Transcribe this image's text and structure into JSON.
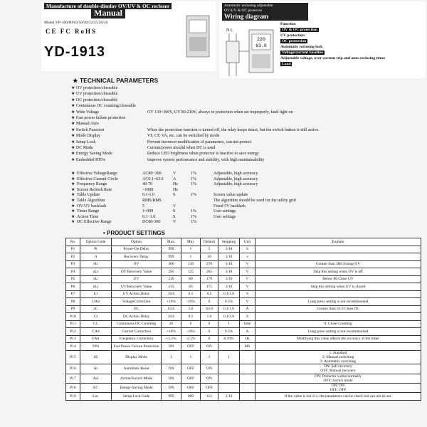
{
  "header": {
    "title": "Manufacture of double-display OV/UV & OC recloser",
    "subtitle": "Manual",
    "model": "Model:VP-100/80/63/50/40/32/25/20/16",
    "certifications": "CE  FC  RoHS",
    "product": "YD-1913"
  },
  "wiring": {
    "title_lines": [
      "Automatic reclosing adjustable",
      "OV/UV & OC protector"
    ],
    "title": "Wiring diagram",
    "terminals": "N   L",
    "display_voltage": "220",
    "display_current": "63.0",
    "legend": [
      "Function",
      "OV & OC protection",
      "UV protection",
      "OC protection",
      "Automatic reclosing lock",
      "Voltage/current baseline",
      "Adjustable voltage, over current trip and auto-reclosing times",
      "Load"
    ]
  },
  "technical": {
    "title": "TECHNICAL PARAMETERS",
    "features": [
      {
        "label": "OV protection/closeable"
      },
      {
        "label": "UV protection/closeable"
      },
      {
        "label": "OC protection/closeable"
      },
      {
        "label": "Continuous OC counting/closeable"
      },
      {
        "label": "Wide Voltage",
        "detail": "OV 130~300V, UV 80-210V, always in protection when set improperly, fault light on"
      },
      {
        "label": "Fast power failure protection"
      },
      {
        "label": "Manual/Auto"
      },
      {
        "label": "Switch Function",
        "detail": "When the protection function is turned off, the relay keeps intact, but the switch button is still active."
      },
      {
        "label": "Mode Display",
        "detail": "VF, CF, VA, etc. can be switched by mode"
      },
      {
        "label": "Setup Lock",
        "detail": "Prevent incorrect modification of parameters, can not protect"
      },
      {
        "label": "DC Mode",
        "detail": "Current/power invalid when DC is used"
      },
      {
        "label": "Energy Saving Mode",
        "detail": "Reduce LED brightness when protector is inactive to save energy"
      },
      {
        "label": "Embedded RTOs",
        "detail": "Improve system performance and stability, with high maintainability"
      }
    ],
    "specs": [
      {
        "name": "Effective VoltageRange",
        "value": "AC80~300",
        "unit": "V",
        "accuracy": "1%",
        "note": "Adjustable, high accuracy"
      },
      {
        "name": "Effective Current Circle",
        "value": "AC0.1~63.0",
        "unit": "A",
        "accuracy": "1%",
        "note": "Adjustable, high accuracy"
      },
      {
        "name": "Frequency Range",
        "value": "40-70",
        "unit": "Hz",
        "accuracy": "1%",
        "note": "Adjustable, high accuracy"
      },
      {
        "name": "Screen Refresh Rate",
        "value": ">1000",
        "unit": "Hz"
      },
      {
        "name": "Table Update",
        "value": "0.1-1.0",
        "unit": "S",
        "accuracy": "1%",
        "note": "Screen value update"
      },
      {
        "name": "Table Algorithm",
        "value": "RMS/RMS",
        "note": "The algorithm should be used for the utility grid"
      },
      {
        "name": "OV-UV backlash",
        "value": "5",
        "unit": "V",
        "note": "Fixed 5V backlash"
      },
      {
        "name": "Timer Range",
        "value": "1~999",
        "unit": "S",
        "accuracy": "1%",
        "note": "User settings"
      },
      {
        "name": "Action Time",
        "value": "0.1~1.0",
        "unit": "S",
        "accuracy": "1%",
        "note": "User settings"
      },
      {
        "name": "DC Effective Range",
        "value": "DC80-300",
        "unit": "V",
        "accuracy": "1%"
      }
    ]
  },
  "settings": {
    "title": "PRODUCT SETTINGS",
    "columns": [
      "No.",
      "Option Code",
      "Option",
      "Max.",
      "Min.",
      "Default",
      "Stepping",
      "Unit",
      "Explain"
    ],
    "rows": [
      [
        "P1",
        "Pt",
        "Power-On Delay",
        "999",
        "1",
        "5",
        "1/10",
        "S",
        null
      ],
      [
        "P2",
        "rt",
        "Recovery Delay",
        "999",
        "1",
        "30",
        "1/10",
        "s",
        null
      ],
      [
        "P3",
        "oU",
        "OV",
        "300",
        "130",
        "270",
        "1/10",
        "V",
        "Greater than 300 closing OV"
      ],
      [
        "P4",
        "oLr",
        "OV Recovery Value",
        "295",
        "125",
        "265",
        "1/10",
        "V",
        "Skip this setting when OV is off"
      ],
      [
        "P5",
        "uU",
        "UV",
        "210",
        "80",
        "170",
        "1/10",
        "V",
        "Below 80 Close UV"
      ],
      [
        "P6",
        "uLr",
        "UV Recovery Value",
        "215",
        "85",
        "175",
        "1/10",
        "V",
        "Skip this setting when UV is closed"
      ],
      [
        "P7",
        "Ut",
        "UV Action Delay",
        "10.0",
        "0.1",
        "0.5",
        "0.1/1.0",
        "S",
        null
      ],
      [
        "P8",
        "UAd",
        "VoltageCorrection",
        "+10%",
        "-10%",
        "0",
        "0.5%",
        "V",
        "Long press setting is not recommended"
      ],
      [
        "P9",
        "oC",
        "OC",
        "63.0",
        "1.0",
        "63.0",
        "0.1/1.0",
        "A",
        "Greater than 63.0 Close OC"
      ],
      [
        "P10",
        "Ct",
        "OC Action Delay",
        "10.0",
        "0.1",
        "1.0",
        "0.1/1.0",
        "S",
        null
      ],
      [
        "P11",
        "CC",
        "Continuous OC Counting",
        "20",
        "0",
        "0",
        "1",
        "time",
        "0: Close Counting"
      ],
      [
        "P12",
        "CAd",
        "Current Correction",
        "+10%",
        "-10%",
        "0",
        "0.5%",
        "A",
        "Long press setting is not recommended"
      ],
      [
        "P13",
        "FAd",
        "Frequency Correction",
        "+2.5%",
        "-2.5%",
        "0",
        "0.19%",
        "Hz",
        "Modifying this value affects the accuracy of the timer"
      ],
      [
        "P14",
        "FPd",
        "Fast Power Failure Protection",
        "ON",
        "OFF",
        "ON",
        null,
        "MS",
        null
      ],
      [
        "P15",
        "dS",
        "Display Mode",
        "3",
        "1",
        "1",
        "1",
        null,
        "1: Standard\n2: Manual switching\n3: Automatic switching"
      ],
      [
        "P16",
        "Ar",
        "Automatic Reset",
        "ON",
        "OFF",
        "ON",
        null,
        null,
        "ON: Self-recovery\nOFF: Manual recovery"
      ],
      [
        "P17",
        "Act",
        "Action/Switch Mode",
        "ON",
        "OFF",
        "ON",
        null,
        null,
        "ON: Protector works normally\nOFF: Switch mode"
      ],
      [
        "P18",
        "EC",
        "Energy-Saving Mode",
        "ON",
        "OFF",
        "OFF",
        null,
        null,
        "ON: ON\nOFF: OFF"
      ],
      [
        "P19",
        "Loc",
        "Setup Lock Code",
        "999",
        "000",
        "112",
        "1/10",
        null,
        "If the value is not 112, the parameters can be check but can not be set."
      ]
    ]
  }
}
